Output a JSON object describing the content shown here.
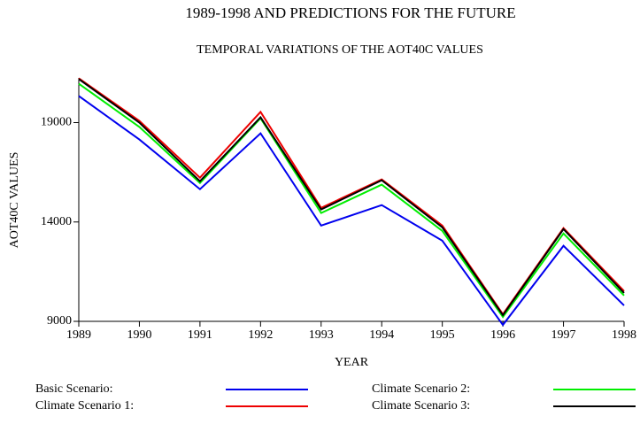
{
  "chart_data": {
    "type": "line",
    "title": "1989-1998 AND PREDICTIONS FOR THE FUTURE",
    "subtitle": "TEMPORAL VARIATIONS OF THE AOT40C VALUES",
    "x_label": "YEAR",
    "y_label": "AOT40C VALUES",
    "x": [
      1989,
      1990,
      1991,
      1992,
      1993,
      1994,
      1995,
      1996,
      1997,
      1998
    ],
    "xlim": [
      1989,
      1998
    ],
    "xticks": [
      1989,
      1990,
      1991,
      1992,
      1993,
      1994,
      1995,
      1996,
      1997,
      1998
    ],
    "ylim": [
      9000,
      21250
    ],
    "yticks": [
      9000,
      14000,
      19000
    ],
    "series": [
      {
        "name": "Basic Scenario:",
        "color": "#0000ee",
        "values": [
          20340,
          18150,
          15650,
          18460,
          13820,
          14850,
          13060,
          8820,
          12800,
          9800
        ]
      },
      {
        "name": "Climate Scenario 1:",
        "color": "#ee0000",
        "values": [
          21230,
          19090,
          16230,
          19540,
          14710,
          16140,
          13820,
          9360,
          13690,
          10520
        ]
      },
      {
        "name": "Climate Scenario 2:",
        "color": "#00ee00",
        "values": [
          20960,
          18780,
          15960,
          19220,
          14450,
          15880,
          13550,
          9220,
          13420,
          10300
        ]
      },
      {
        "name": "Climate Scenario 3:",
        "color": "#000000",
        "values": [
          21190,
          19000,
          16050,
          19270,
          14630,
          16100,
          13730,
          9310,
          13640,
          10430
        ]
      }
    ]
  }
}
